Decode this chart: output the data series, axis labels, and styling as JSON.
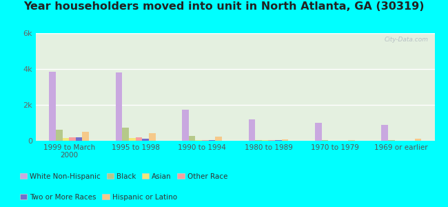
{
  "title": "Year householders moved into unit in North Atlanta, GA (30319)",
  "categories": [
    "1999 to March\n2000",
    "1995 to 1998",
    "1990 to 1994",
    "1980 to 1989",
    "1970 to 1979",
    "1969 or earlier"
  ],
  "series": {
    "White Non-Hispanic": [
      3850,
      3800,
      1750,
      1200,
      1000,
      900
    ],
    "Black": [
      600,
      750,
      280,
      50,
      30,
      50
    ],
    "Asian": [
      150,
      150,
      30,
      20,
      10,
      10
    ],
    "Other Race": [
      180,
      180,
      30,
      20,
      10,
      10
    ],
    "Two or More Races": [
      200,
      100,
      40,
      30,
      15,
      15
    ],
    "Hispanic or Latino": [
      500,
      430,
      230,
      80,
      30,
      120
    ]
  },
  "colors": {
    "White Non-Hispanic": "#c9a8e0",
    "Black": "#b5c98a",
    "Asian": "#f0e87a",
    "Other Race": "#f5a0a0",
    "Two or More Races": "#7070cc",
    "Hispanic or Latino": "#f5c98a"
  },
  "ylim": [
    0,
    6000
  ],
  "yticks": [
    0,
    2000,
    4000,
    6000
  ],
  "ytick_labels": [
    "0",
    "2k",
    "4k",
    "6k"
  ],
  "background_color": "#00ffff",
  "watermark": "City-Data.com",
  "title_fontsize": 11.5,
  "legend_fontsize": 7.5
}
